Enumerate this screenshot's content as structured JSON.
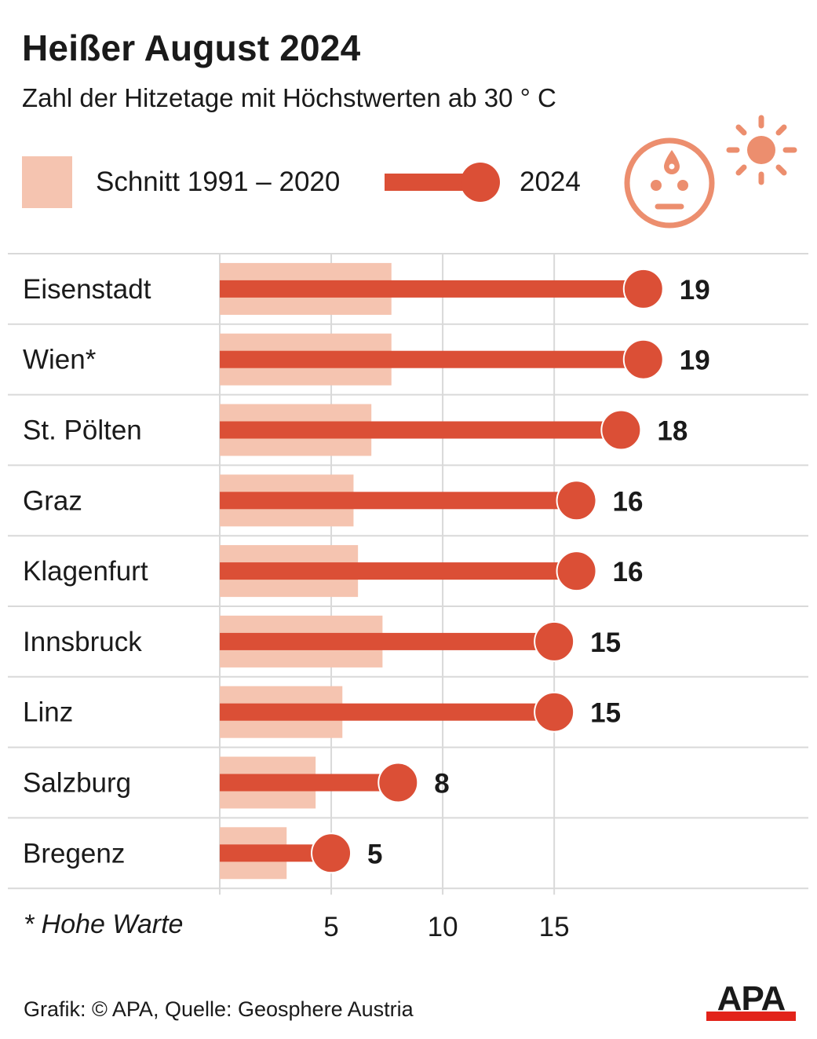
{
  "header": {
    "title": "Heißer August 2024",
    "subtitle": "Zahl der Hitzetage mit Höchstwerten ab 30 ° C"
  },
  "legend": {
    "average_label": "Schnitt 1991 – 2020",
    "current_label": "2024"
  },
  "icon": {
    "name": "hot-face-sun-icon"
  },
  "chart_data": {
    "type": "bar",
    "orientation": "horizontal",
    "categories": [
      "Eisenstadt",
      "Wien*",
      "St. Pölten",
      "Graz",
      "Klagenfurt",
      "Innsbruck",
      "Linz",
      "Salzburg",
      "Bregenz"
    ],
    "series": [
      {
        "name": "Schnitt 1991 – 2020",
        "values": [
          7.7,
          7.7,
          6.8,
          6.0,
          6.2,
          7.3,
          5.5,
          4.3,
          3.0
        ]
      },
      {
        "name": "2024",
        "values": [
          19,
          19,
          18,
          16,
          16,
          15,
          15,
          8,
          5
        ]
      }
    ],
    "value_labels": [
      "19",
      "19",
      "18",
      "16",
      "16",
      "15",
      "15",
      "8",
      "5"
    ],
    "x_ticks": [
      5,
      10,
      15
    ],
    "x_tick_labels": [
      "5",
      "10",
      "15"
    ],
    "xlim": [
      0,
      26.4
    ],
    "grid": true,
    "legend_position": "top"
  },
  "footnote": "* Hohe Warte",
  "credit": "Grafik: © APA, Quelle: Geosphere Austria",
  "logo": {
    "text": "APA"
  },
  "colors": {
    "avg": "#f5c4b0",
    "accent": "#db4f36",
    "icon": "#ec8e6e",
    "grid": "#d9d9d9",
    "logo_red": "#e2231a"
  }
}
